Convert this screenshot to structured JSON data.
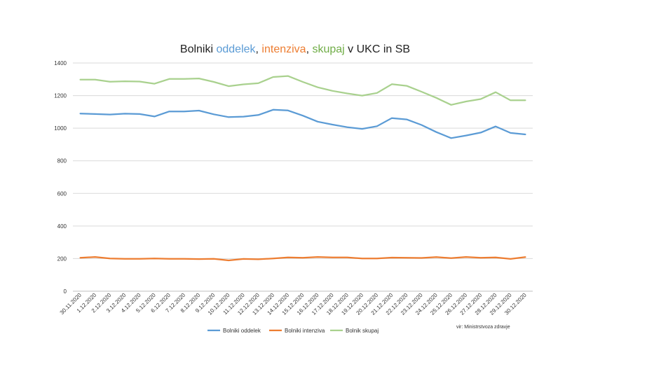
{
  "chart_data": {
    "type": "line",
    "title": {
      "prefix": "Bolniki ",
      "part1": "oddelek",
      "sep1": ", ",
      "part2": "intenziva",
      "sep2": ", ",
      "part3": "skupaj",
      "suffix": " v UKC in SB"
    },
    "ylim": [
      0,
      1400
    ],
    "yticks": [
      0,
      200,
      400,
      600,
      800,
      1000,
      1200,
      1400
    ],
    "categories": [
      "30.11.2020",
      "1.12.2020",
      "2.12.2020",
      "3.12.2020",
      "4.12.2020",
      "5.12.2020",
      "6.12.2020",
      "7.12.2020",
      "8.12.2020",
      "9.12.2020",
      "10.12.2020",
      "11.12.2020",
      "12.12.2020",
      "13.12.2020",
      "14.12.2020",
      "15.12.2020",
      "16.12.2020",
      "17.12.2020",
      "18.12.2020",
      "19.12.2020",
      "20.12.2020",
      "21.12.2020",
      "22.12.2020",
      "23.12.2020",
      "24.12.2020",
      "25.12.2020",
      "26.12.2020",
      "27.12.2020",
      "28.12.2020",
      "29.12.2020",
      "30.12.2020"
    ],
    "series": [
      {
        "name": "Bolniki oddelek",
        "color": "#5b9bd5",
        "values": [
          1090,
          1087,
          1084,
          1089,
          1087,
          1072,
          1103,
          1103,
          1108,
          1085,
          1068,
          1071,
          1081,
          1113,
          1109,
          1077,
          1040,
          1022,
          1006,
          996,
          1012,
          1062,
          1054,
          1020,
          976,
          939,
          955,
          973,
          1011,
          971,
          962
        ]
      },
      {
        "name": "Bolniki intenziva",
        "color": "#ed7d31",
        "values": [
          205,
          210,
          201,
          199,
          199,
          201,
          199,
          199,
          197,
          199,
          189,
          198,
          196,
          201,
          207,
          205,
          210,
          207,
          207,
          201,
          201,
          206,
          205,
          204,
          209,
          203,
          210,
          205,
          207,
          198,
          209
        ]
      },
      {
        "name": "Bolnik skupaj",
        "color": "#a9d18e",
        "values": [
          1298,
          1298,
          1285,
          1288,
          1286,
          1273,
          1302,
          1302,
          1305,
          1284,
          1258,
          1269,
          1276,
          1314,
          1320,
          1284,
          1251,
          1229,
          1213,
          1200,
          1216,
          1270,
          1260,
          1224,
          1186,
          1143,
          1164,
          1179,
          1221,
          1171,
          1171
        ]
      }
    ],
    "source": "vir: Ministrstvoza zdravje",
    "legend_position": "bottom"
  }
}
